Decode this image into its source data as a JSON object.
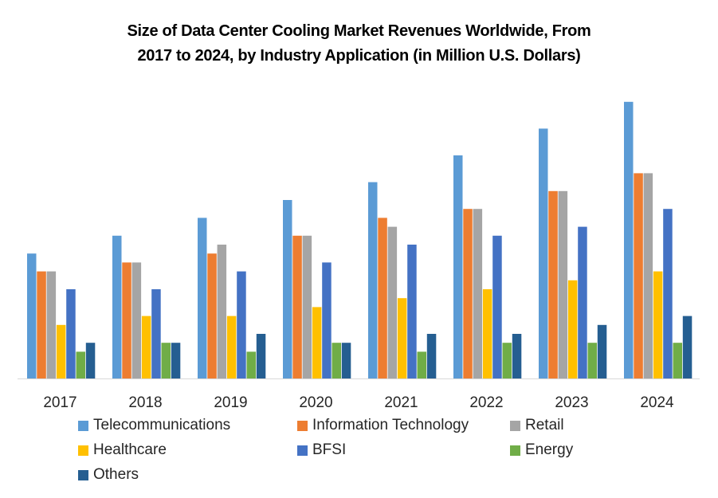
{
  "chart_data": {
    "type": "bar",
    "title": "Size of Data Center Cooling  Market Revenues Worldwide, From 2017 to 2024, by Industry Application  (in Million U.S. Dollars)",
    "title_lines": [
      "Size of Data Center Cooling  Market Revenues Worldwide, From",
      "2017 to 2024, by Industry Application  (in Million U.S. Dollars)"
    ],
    "xlabel": "",
    "ylabel": "",
    "y_axis_shown": false,
    "grid": false,
    "legend_position": "bottom",
    "ylim": [
      0,
      32
    ],
    "value_units_note": "relative units (no y-axis shown)",
    "categories": [
      "2017",
      "2018",
      "2019",
      "2020",
      "2021",
      "2022",
      "2023",
      "2024"
    ],
    "series": [
      {
        "name": "Telecommunications",
        "color": "#5B9BD5",
        "values": [
          14,
          16,
          18,
          20,
          22,
          25,
          28,
          31
        ]
      },
      {
        "name": "Information Technology",
        "color": "#ED7D31",
        "values": [
          12,
          13,
          14,
          16,
          18,
          19,
          21,
          23
        ]
      },
      {
        "name": "Retail",
        "color": "#A5A5A5",
        "values": [
          12,
          13,
          15,
          16,
          17,
          19,
          21,
          23
        ]
      },
      {
        "name": "Healthcare",
        "color": "#FFC000",
        "values": [
          6,
          7,
          7,
          8,
          9,
          10,
          11,
          12
        ]
      },
      {
        "name": "BFSI",
        "color": "#4472C4",
        "values": [
          10,
          10,
          12,
          13,
          15,
          16,
          17,
          19
        ]
      },
      {
        "name": "Energy",
        "color": "#70AD47",
        "values": [
          3,
          4,
          3,
          4,
          3,
          4,
          4,
          4
        ]
      },
      {
        "name": "Others",
        "color": "#255E91",
        "values": [
          4,
          4,
          5,
          4,
          5,
          5,
          6,
          7
        ]
      }
    ]
  }
}
